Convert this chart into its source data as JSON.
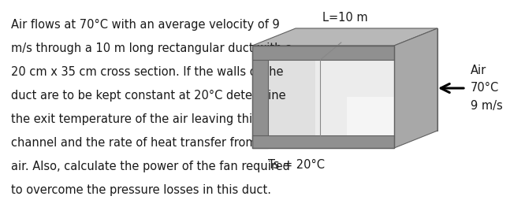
{
  "text_lines": [
    "Air flows at 70°C with an average velocity of 9",
    "m/s through a 10 m long rectangular duct with a",
    "20 cm x 35 cm cross section. If the walls of the",
    "duct are to be kept constant at 20°C determine",
    "the exit temperature of the air leaving this",
    "channel and the rate of heat transfer from the",
    "air. Also, calculate the power of the fan required",
    "to overcome the pressure losses in this duct."
  ],
  "label_L": "L=10 m",
  "label_Ts": "Ts = 20°C",
  "label_Air": "Air",
  "label_temp": "70°C",
  "label_vel": "9 m/s",
  "bg_color": "#ffffff",
  "text_color": "#1a1a1a",
  "font_size_main": 10.5,
  "font_size_labels": 10.5,
  "front_face_color": "#d0d0d0",
  "top_face_color": "#b8b8b8",
  "right_face_color": "#a8a8a8",
  "inner_face_color": "#c8c8c8",
  "inner_dark": "#909090",
  "edge_color": "#606060",
  "highlight_color": "#e8e8e8",
  "dark_shadow": "#787878"
}
